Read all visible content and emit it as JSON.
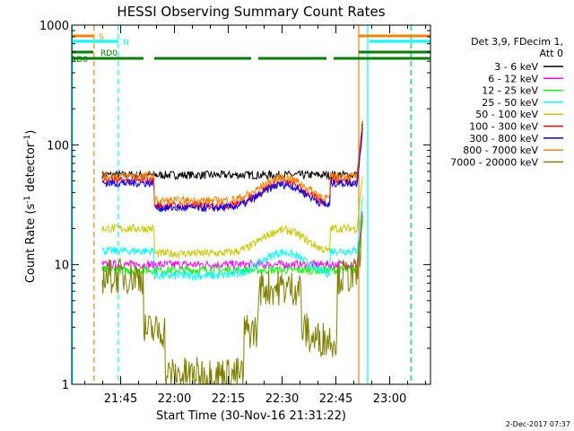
{
  "chart_data": {
    "type": "line",
    "title": "HESSI Observing Summary Count Rates",
    "xlabel": "Start Time (30-Nov-16 21:31:22)",
    "ylabel_main": "Count Rate (s",
    "ylabel_sup": "-1",
    "ylabel_mid": " detector",
    "ylabel_sup2": "-1",
    "ylabel_end": ")",
    "yscale": "log",
    "ylim": [
      1,
      1000
    ],
    "xlim_min": [
      0,
      100
    ],
    "x_ticks": [
      {
        "label": "21:45",
        "min": 13.63
      },
      {
        "label": "22:00",
        "min": 28.63
      },
      {
        "label": "22:15",
        "min": 43.63
      },
      {
        "label": "22:30",
        "min": 58.63
      },
      {
        "label": "22:45",
        "min": 73.63
      },
      {
        "label": "23:00",
        "min": 88.63
      }
    ],
    "y_ticks": [
      {
        "label": "1",
        "value": 1
      },
      {
        "label": "10",
        "value": 10
      },
      {
        "label": "100",
        "value": 100
      },
      {
        "label": "1000",
        "value": 1000
      }
    ],
    "legend": {
      "header": [
        "Det 3,9, FDecim 1,",
        "Att 0"
      ],
      "placement": "right"
    },
    "series": [
      {
        "name": "3 - 6 keV",
        "color": "#000000",
        "plateau": 56,
        "kind": "flat"
      },
      {
        "name": "6 - 12 keV",
        "color": "#ff00ff",
        "plateau": 10,
        "kind": "flat"
      },
      {
        "name": "12 - 25 keV",
        "color": "#00ff00",
        "plateau": 9,
        "kind": "flat"
      },
      {
        "name": "25 - 50 keV",
        "color": "#00ffff",
        "plateau": 13,
        "kind": "dip"
      },
      {
        "name": "50 - 100 keV",
        "color": "#c8c800",
        "plateau": 20,
        "kind": "dip"
      },
      {
        "name": "100 - 300 keV",
        "color": "#ff0000",
        "plateau": 50,
        "kind": "dip"
      },
      {
        "name": "300 - 800 keV",
        "color": "#0000ff",
        "plateau": 48,
        "kind": "dip"
      },
      {
        "name": "800 - 7000 keV",
        "color": "#ff8000",
        "plateau": 55,
        "kind": "dip"
      },
      {
        "name": "7000 - 20000 keV",
        "color": "#808000",
        "plateau": 8,
        "kind": "deep"
      }
    ],
    "flags": [
      {
        "label": "S",
        "color": "#ff8000",
        "segments": [
          [
            0,
            6
          ],
          [
            80,
            100
          ]
        ]
      },
      {
        "label": "N",
        "color": "#00ffff",
        "segments": [
          [
            0,
            13
          ],
          [
            83,
            100
          ]
        ]
      },
      {
        "label": "RD0",
        "color": "#008000",
        "segments": [
          [
            0,
            6
          ],
          [
            80,
            100
          ]
        ]
      },
      {
        "label": "RD6",
        "color": "#008000",
        "segments": [
          [
            0,
            20
          ],
          [
            23,
            50
          ],
          [
            52,
            71
          ],
          [
            73,
            100
          ]
        ]
      }
    ],
    "vlines": [
      {
        "min": 0.2,
        "color": "#00ffff",
        "style": "solid"
      },
      {
        "min": 6.2,
        "color": "#ff8000",
        "style": "dashed"
      },
      {
        "min": 13.0,
        "color": "#00ffff",
        "style": "dashed"
      },
      {
        "min": 80.0,
        "color": "#ff8000",
        "style": "solid"
      },
      {
        "min": 82.5,
        "color": "#00ffff",
        "style": "solid"
      },
      {
        "min": 94.5,
        "color": "#ff8000",
        "style": "dashed"
      },
      {
        "min": 94.7,
        "color": "#00ffff",
        "style": "dashed"
      }
    ]
  },
  "footer_timestamp": "2-Dec-2017 07:37"
}
